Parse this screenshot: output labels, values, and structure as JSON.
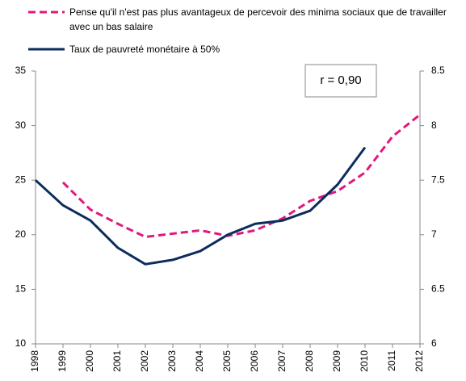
{
  "chart_data": {
    "type": "line",
    "categories": [
      "1998",
      "1999",
      "2000",
      "2001",
      "2002",
      "2003",
      "2004",
      "2005",
      "2006",
      "2007",
      "2008",
      "2009",
      "2010",
      "2011",
      "2012"
    ],
    "series": [
      {
        "name": "Pense qu'il n'est pas plus avantageux de percevoir des minima sociaux que de travailler avec un bas salaire",
        "color": "#e0197d",
        "dashed": true,
        "values": [
          null,
          24.8,
          22.3,
          21.0,
          19.8,
          20.1,
          20.4,
          19.9,
          20.4,
          21.5,
          23.1,
          24.0,
          25.7,
          29.0,
          31.0
        ]
      },
      {
        "name": "Taux de pauvreté monétaire à 50%",
        "color": "#0d2c5e",
        "axis": "y2",
        "dashed": false,
        "values": [
          7.5,
          7.27,
          7.13,
          6.88,
          6.73,
          6.77,
          6.85,
          7.0,
          7.1,
          7.13,
          7.22,
          7.46,
          7.8,
          null,
          null
        ]
      }
    ],
    "ylim": [
      10,
      35
    ],
    "yticks": [
      10,
      15,
      20,
      25,
      30,
      35
    ],
    "y2lim": [
      6,
      8.5
    ],
    "y2ticks": [
      6,
      6.5,
      7,
      7.5,
      8,
      8.5
    ],
    "annotation": "r = 0,90"
  }
}
